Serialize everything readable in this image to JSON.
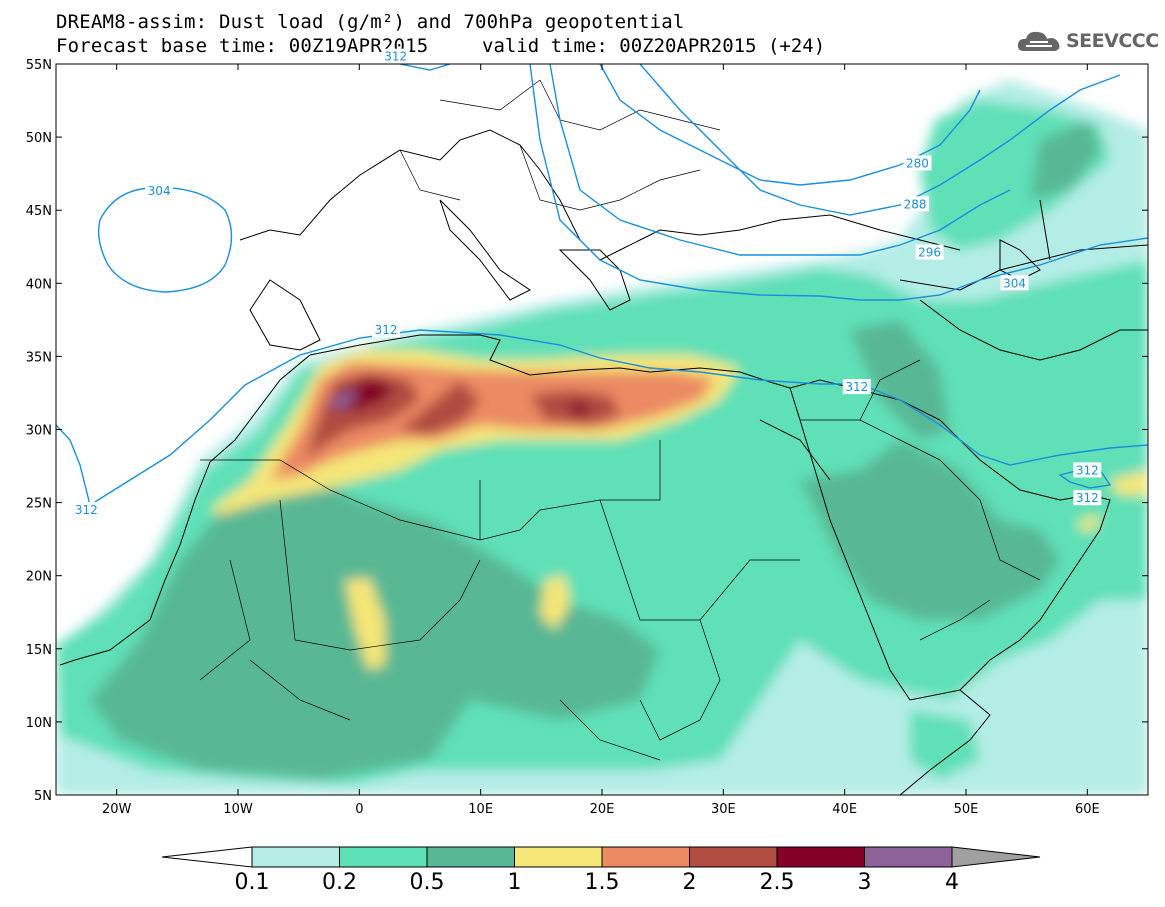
{
  "header": {
    "title_line1": "DREAM8-assim: Dust load (g/m²) and 700hPa geopotential",
    "title_line2": "Forecast base time: 00Z19APR2015",
    "valid_time": "valid time: 00Z20APR2015 (+24)",
    "logo_text": "SEEVCCC",
    "logo_icon": "cloud-icon"
  },
  "map": {
    "lon_range": [
      -25,
      65
    ],
    "lat_range": [
      5,
      55
    ],
    "lat_ticks": [
      {
        "value": 55,
        "label": "55N"
      },
      {
        "value": 50,
        "label": "50N"
      },
      {
        "value": 45,
        "label": "45N"
      },
      {
        "value": 40,
        "label": "40N"
      },
      {
        "value": 35,
        "label": "35N"
      },
      {
        "value": 30,
        "label": "30N"
      },
      {
        "value": 25,
        "label": "25N"
      },
      {
        "value": 20,
        "label": "20N"
      },
      {
        "value": 15,
        "label": "15N"
      },
      {
        "value": 10,
        "label": "10N"
      },
      {
        "value": 5,
        "label": "5N"
      }
    ],
    "lon_ticks": [
      {
        "value": -20,
        "label": "20W"
      },
      {
        "value": -10,
        "label": "10W"
      },
      {
        "value": 0,
        "label": "0"
      },
      {
        "value": 10,
        "label": "10E"
      },
      {
        "value": 20,
        "label": "20E"
      },
      {
        "value": 30,
        "label": "30E"
      },
      {
        "value": 40,
        "label": "40E"
      },
      {
        "value": 50,
        "label": "50E"
      },
      {
        "value": 60,
        "label": "60E"
      }
    ],
    "contour_color": "#1a8fdc",
    "contour_labels": [
      {
        "text": "304",
        "lon": -16.5,
        "lat": 46.3
      },
      {
        "text": "312",
        "lon": 3.0,
        "lat": 55.5
      },
      {
        "text": "312",
        "lon": 2.2,
        "lat": 36.8
      },
      {
        "text": "312",
        "lon": -22.5,
        "lat": 24.5
      },
      {
        "text": "280",
        "lon": 46.0,
        "lat": 48.2
      },
      {
        "text": "288",
        "lon": 45.8,
        "lat": 45.4
      },
      {
        "text": "296",
        "lon": 47.0,
        "lat": 42.1
      },
      {
        "text": "304",
        "lon": 54.0,
        "lat": 40.0
      },
      {
        "text": "312",
        "lon": 41.0,
        "lat": 32.9
      },
      {
        "text": "312",
        "lon": 60.0,
        "lat": 27.2
      },
      {
        "text": "312",
        "lon": 60.0,
        "lat": 25.3
      }
    ]
  },
  "colorbar": {
    "labels": [
      "0.1",
      "0.2",
      "0.5",
      "1",
      "1.5",
      "2",
      "2.5",
      "3",
      "4"
    ],
    "colors": [
      "#b4ede6",
      "#5ee0b7",
      "#59b894",
      "#f5e677",
      "#ec8a63",
      "#b04c40",
      "#840026",
      "#8c6299"
    ],
    "low_color": "#ffffff",
    "high_color": "#a0a0a0"
  },
  "legend_colors": {
    "land_outline": "#000000",
    "background": "#ffffff"
  }
}
